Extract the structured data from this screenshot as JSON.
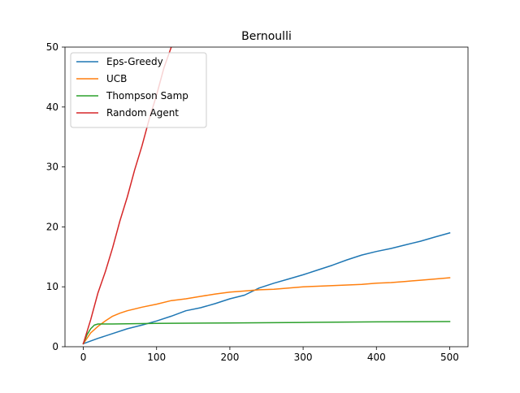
{
  "chart_data": {
    "type": "line",
    "title": "Bernoulli",
    "xlabel": "",
    "ylabel": "",
    "xlim": [
      -25,
      525
    ],
    "ylim": [
      0,
      50
    ],
    "xticks": [
      0,
      100,
      200,
      300,
      400,
      500
    ],
    "yticks": [
      0,
      10,
      20,
      30,
      40,
      50
    ],
    "grid": false,
    "legend_position": "top-left",
    "series": [
      {
        "name": "Eps-Greedy",
        "color": "#1f77b4",
        "x": [
          0,
          20,
          40,
          60,
          80,
          100,
          120,
          140,
          160,
          180,
          200,
          220,
          240,
          260,
          280,
          300,
          320,
          340,
          360,
          380,
          400,
          420,
          440,
          460,
          480,
          500
        ],
        "y": [
          0.5,
          1.4,
          2.2,
          3.0,
          3.6,
          4.3,
          5.1,
          6.0,
          6.5,
          7.2,
          8.0,
          8.6,
          9.8,
          10.6,
          11.3,
          12.0,
          12.8,
          13.6,
          14.5,
          15.3,
          15.9,
          16.4,
          17.0,
          17.6,
          18.3,
          19.0
        ]
      },
      {
        "name": "UCB",
        "color": "#ff7f0e",
        "x": [
          0,
          10,
          20,
          30,
          40,
          50,
          60,
          80,
          100,
          120,
          140,
          160,
          180,
          200,
          220,
          240,
          260,
          280,
          300,
          320,
          340,
          360,
          380,
          400,
          420,
          440,
          460,
          480,
          500
        ],
        "y": [
          0.5,
          2.3,
          3.4,
          4.3,
          5.1,
          5.6,
          6.0,
          6.6,
          7.1,
          7.7,
          8.0,
          8.4,
          8.8,
          9.1,
          9.3,
          9.5,
          9.6,
          9.8,
          10.0,
          10.1,
          10.2,
          10.3,
          10.4,
          10.6,
          10.7,
          10.9,
          11.1,
          11.3,
          11.5
        ]
      },
      {
        "name": "Thompson Samp",
        "color": "#2ca02c",
        "x": [
          0,
          5,
          10,
          15,
          20,
          40,
          100,
          200,
          300,
          400,
          500
        ],
        "y": [
          0.5,
          2.0,
          3.0,
          3.6,
          3.8,
          3.8,
          3.9,
          3.95,
          4.05,
          4.15,
          4.2
        ]
      },
      {
        "name": "Random Agent",
        "color": "#d62728",
        "x": [
          0,
          10,
          20,
          30,
          40,
          50,
          60,
          70,
          80,
          90,
          100,
          110,
          120
        ],
        "y": [
          0.5,
          4.5,
          9.0,
          12.5,
          16.5,
          21.0,
          25.0,
          29.5,
          33.5,
          38.0,
          42.0,
          46.5,
          50.0
        ]
      }
    ]
  }
}
